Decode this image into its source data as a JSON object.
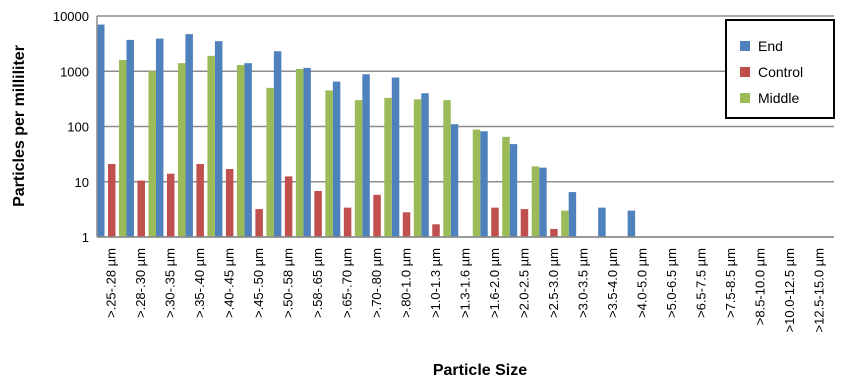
{
  "chart_data": {
    "type": "bar",
    "title": "",
    "xlabel": "Particle Size",
    "ylabel": "Particles per milliliter",
    "yscale": "log",
    "ylim": [
      1,
      10000
    ],
    "yticks": [
      "1",
      "10",
      "100",
      "1000",
      "10000"
    ],
    "grid": true,
    "legend_position": "top-right",
    "categories": [
      ">.25-.28 µm",
      ">.28-.30 µm",
      ">.30-.35 µm",
      ">.35-.40 µm",
      ">.40-.45 µm",
      ">.45-.50 µm",
      ">.50-.58 µm",
      ">.58-.65 µm",
      ">.65-.70 µm",
      ">.70-.80 µm",
      ">.80-1.0 µm",
      ">1.0-1.3 µm",
      ">1.3-1.6 µm",
      ">1.6-2.0 µm",
      ">2.0-2.5 µm",
      ">2.5-3.0 µm",
      ">3.0-3.5 µm",
      ">3.5-4.0 µm",
      ">4.0-5.0 µm",
      ">5.0-6.5 µm",
      ">6.5-7.5 µm",
      ">7.5-8.5 µm",
      ">8.5-10.0 µm",
      ">10.0-12.5 µm",
      ">12.5-15.0 µm"
    ],
    "series": [
      {
        "name": "End",
        "color": "#4f81bd",
        "values": [
          7000,
          3700,
          3900,
          4700,
          3500,
          1400,
          2300,
          1150,
          650,
          880,
          770,
          400,
          110,
          82,
          48,
          18,
          6.5,
          3.4,
          3.0,
          0,
          0,
          0,
          0,
          0,
          0
        ]
      },
      {
        "name": "Control",
        "color": "#c0504d",
        "values": [
          21,
          10.5,
          14,
          21,
          17,
          3.2,
          12.5,
          6.8,
          3.4,
          5.8,
          2.8,
          1.7,
          0,
          3.4,
          3.2,
          1.4,
          0,
          0,
          0,
          0,
          0,
          0,
          0,
          0,
          0
        ]
      },
      {
        "name": "Middle",
        "color": "#9bbb59",
        "values": [
          1600,
          1000,
          1400,
          1900,
          1300,
          500,
          1100,
          450,
          300,
          330,
          310,
          300,
          88,
          65,
          19,
          3.0,
          0,
          0,
          0,
          0,
          0,
          0,
          0,
          0,
          0
        ]
      }
    ]
  }
}
